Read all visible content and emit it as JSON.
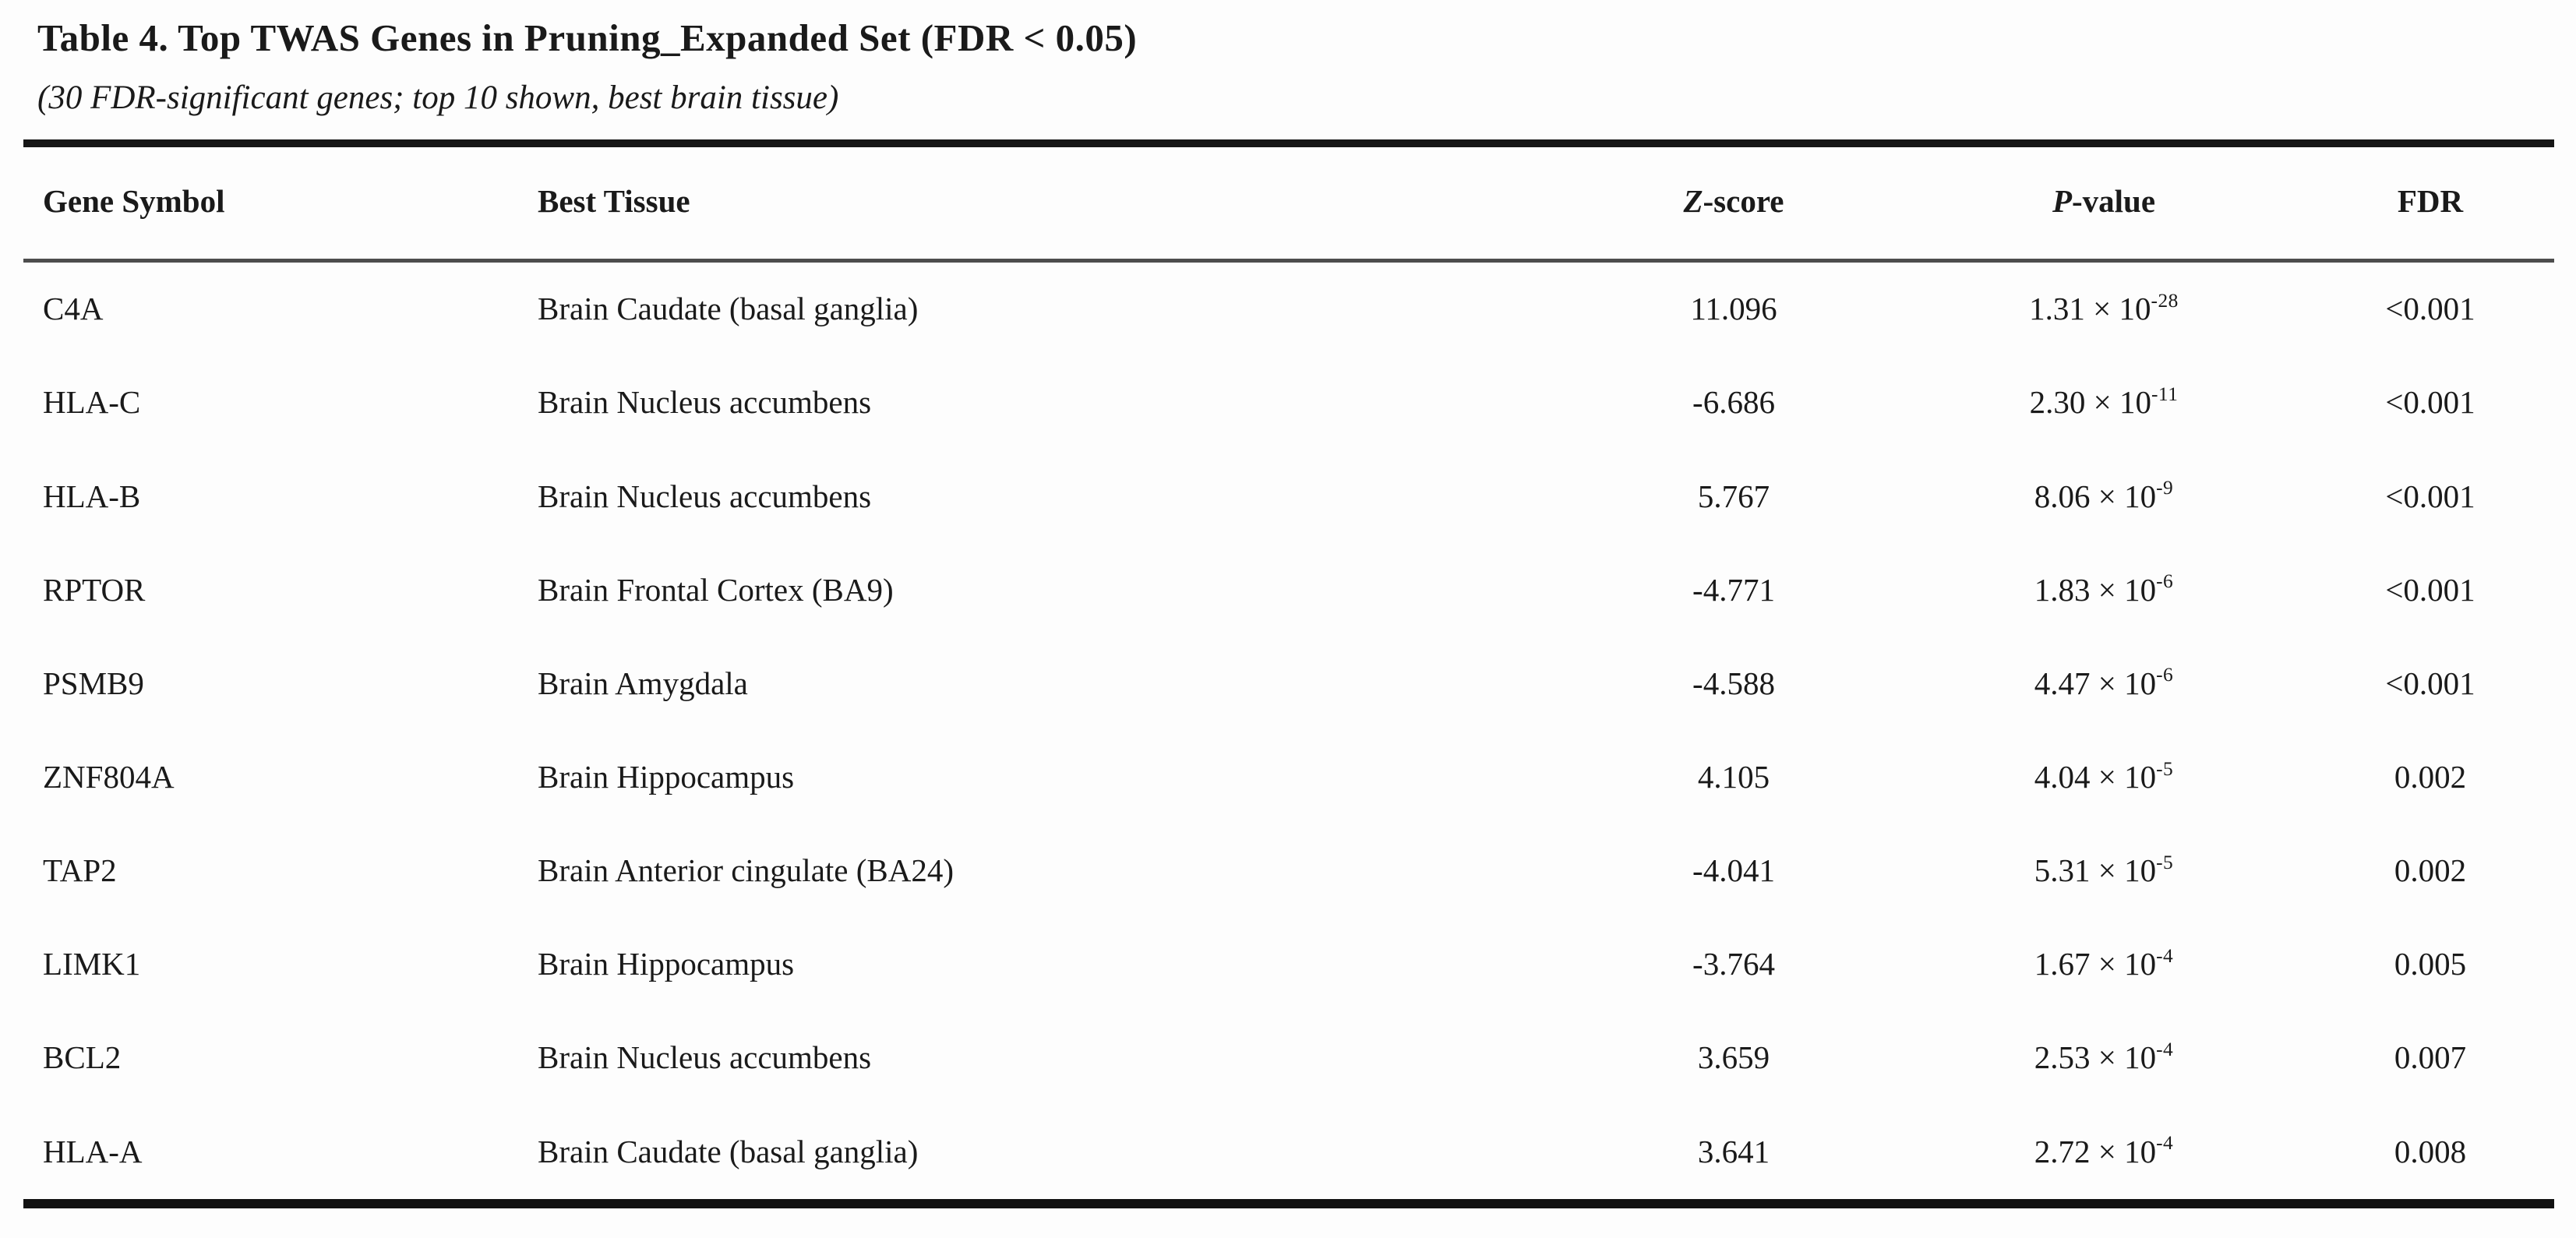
{
  "table": {
    "title": "Table 4. Top TWAS Genes in Pruning_Expanded Set (FDR < 0.05)",
    "subtitle": "(30 FDR-significant genes; top 10 shown, best brain tissue)",
    "columns": {
      "gene": {
        "em": "",
        "rest": "Gene Symbol"
      },
      "tissue": {
        "em": "",
        "rest": "Best Tissue"
      },
      "z": {
        "em": "Z",
        "rest": "-score"
      },
      "p": {
        "em": "P",
        "rest": "-value"
      },
      "fdr": {
        "em": "",
        "rest": "FDR"
      }
    },
    "rows": [
      {
        "gene": "C4A",
        "tissue": "Brain Caudate (basal ganglia)",
        "z": "11.096",
        "p_base": "1.31 × 10",
        "p_exp": "-28",
        "fdr": "<0.001"
      },
      {
        "gene": "HLA-C",
        "tissue": "Brain Nucleus accumbens",
        "z": "-6.686",
        "p_base": "2.30 × 10",
        "p_exp": "-11",
        "fdr": "<0.001"
      },
      {
        "gene": "HLA-B",
        "tissue": "Brain Nucleus accumbens",
        "z": "5.767",
        "p_base": "8.06 × 10",
        "p_exp": "-9",
        "fdr": "<0.001"
      },
      {
        "gene": "RPTOR",
        "tissue": "Brain Frontal Cortex (BA9)",
        "z": "-4.771",
        "p_base": "1.83 × 10",
        "p_exp": "-6",
        "fdr": "<0.001"
      },
      {
        "gene": "PSMB9",
        "tissue": "Brain Amygdala",
        "z": "-4.588",
        "p_base": "4.47 × 10",
        "p_exp": "-6",
        "fdr": "<0.001"
      },
      {
        "gene": "ZNF804A",
        "tissue": "Brain Hippocampus",
        "z": "4.105",
        "p_base": "4.04 × 10",
        "p_exp": "-5",
        "fdr": "0.002"
      },
      {
        "gene": "TAP2",
        "tissue": "Brain Anterior cingulate (BA24)",
        "z": "-4.041",
        "p_base": "5.31 × 10",
        "p_exp": "-5",
        "fdr": "0.002"
      },
      {
        "gene": "LIMK1",
        "tissue": "Brain Hippocampus",
        "z": "-3.764",
        "p_base": "1.67 × 10",
        "p_exp": "-4",
        "fdr": "0.005"
      },
      {
        "gene": "BCL2",
        "tissue": "Brain Nucleus accumbens",
        "z": "3.659",
        "p_base": "2.53 × 10",
        "p_exp": "-4",
        "fdr": "0.007"
      },
      {
        "gene": "HLA-A",
        "tissue": "Brain Caudate (basal ganglia)",
        "z": "3.641",
        "p_base": "2.72 × 10",
        "p_exp": "-4",
        "fdr": "0.008"
      }
    ]
  }
}
